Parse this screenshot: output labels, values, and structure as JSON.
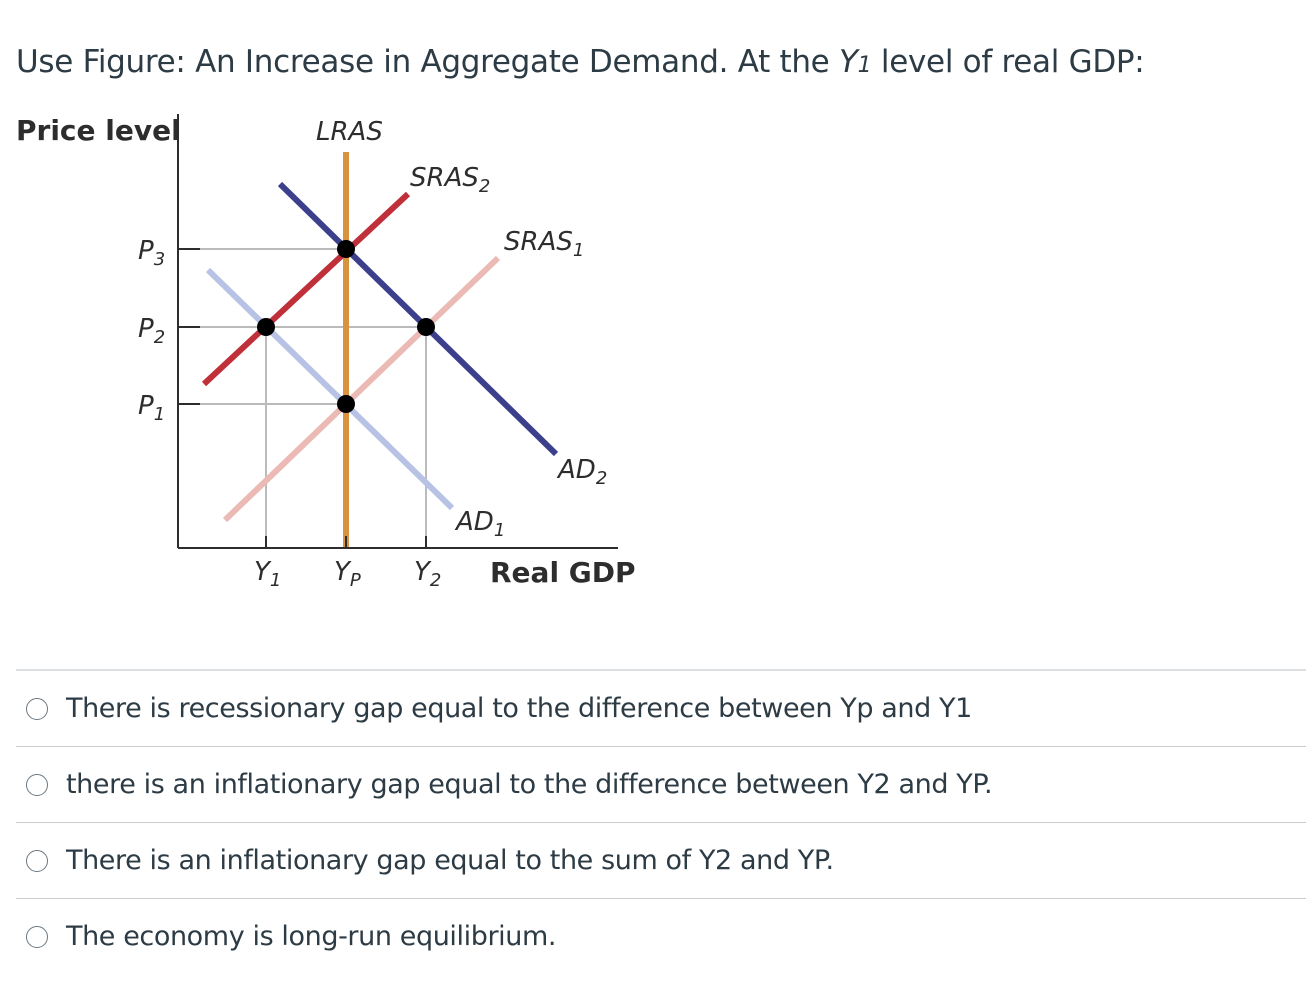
{
  "question": {
    "prefix": "Use Figure: An Increase in Aggregate Demand. At the ",
    "var": "Y",
    "var_sub": "1",
    "suffix": " level of real GDP:"
  },
  "chart_data": {
    "type": "line",
    "ylabel": "Price level",
    "xlabel": "Real GDP",
    "y_ticks": [
      {
        "base": "P",
        "sub": "3"
      },
      {
        "base": "P",
        "sub": "2"
      },
      {
        "base": "P",
        "sub": "1"
      }
    ],
    "x_ticks": [
      {
        "base": "Y",
        "sub": "1"
      },
      {
        "base": "Y",
        "sub": "P"
      },
      {
        "base": "Y",
        "sub": "2"
      }
    ],
    "curve_labels": {
      "lras": "LRAS",
      "sras2": {
        "base": "SRAS",
        "sub": "2"
      },
      "sras1": {
        "base": "SRAS",
        "sub": "1"
      },
      "ad2": {
        "base": "AD",
        "sub": "2"
      },
      "ad1": {
        "base": "AD",
        "sub": "1"
      }
    },
    "colors": {
      "lras": "#d9923e",
      "sras2": "#c0303a",
      "sras1": "#ecbab5",
      "ad2": "#3c3f8c",
      "ad1": "#b8c2e4",
      "guide": "#bbbbbb",
      "axis": "#2d2d2d"
    }
  },
  "answers": [
    "There is recessionary gap equal to the difference between Yp and Y1",
    "there is an inflationary gap equal to the difference between Y2 and YP.",
    "There is an inflationary gap equal to the sum of Y2 and YP.",
    "The economy is long-run equilibrium."
  ]
}
